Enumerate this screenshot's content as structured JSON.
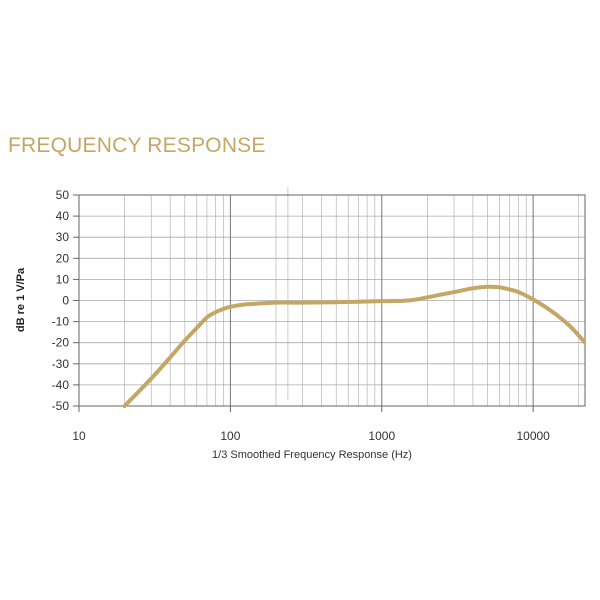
{
  "page": {
    "title": "FREQUENCY RESPONSE"
  },
  "chart_data": {
    "type": "line",
    "title": "",
    "xlabel": "1/3 Smoothed Frequency Response (Hz)",
    "ylabel": "dB re 1 V/Pa",
    "x_scale": "log",
    "xlim": [
      10,
      22000
    ],
    "ylim": [
      -50,
      50
    ],
    "x_ticks": [
      10,
      100,
      1000,
      10000
    ],
    "x_tick_labels": [
      "10",
      "100",
      "1000",
      "10000"
    ],
    "y_ticks": [
      50,
      40,
      30,
      20,
      10,
      0,
      -10,
      -20,
      -30,
      -40,
      -50
    ],
    "y_tick_labels": [
      "50",
      "40",
      "30",
      "20",
      "10",
      "0",
      "-10",
      "-20",
      "-30",
      "-40",
      "-50"
    ],
    "grid": true,
    "colors": {
      "curve": "#c4a765",
      "grid": "#aaaaaa",
      "title": "#c4a765"
    },
    "series": [
      {
        "x": [
          20,
          30,
          40,
          50,
          60,
          70,
          80,
          90,
          100,
          120,
          150,
          200,
          300,
          500,
          1000,
          1500,
          2000,
          3000,
          4000,
          5000,
          6000,
          7000,
          8000,
          10000,
          12000,
          15000,
          18000,
          22000
        ],
        "values": [
          -50,
          -37,
          -27,
          -19,
          -13,
          -8,
          -5.5,
          -4,
          -3,
          -2,
          -1.5,
          -1,
          -1,
          -0.8,
          -0.3,
          0,
          1.5,
          4,
          5.8,
          6.5,
          6.2,
          5.2,
          4,
          0.5,
          -3,
          -8,
          -13,
          -20
        ]
      }
    ]
  }
}
